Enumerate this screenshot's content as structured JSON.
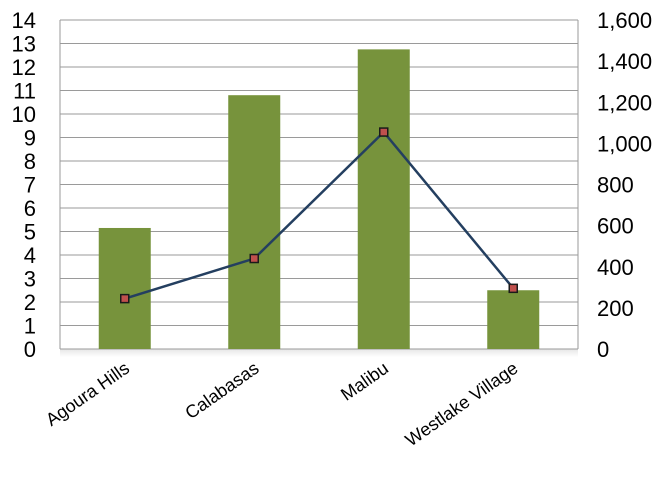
{
  "chart_data": {
    "type": "bar",
    "title": "",
    "xlabel": "",
    "ylabel": "",
    "categories": [
      "Agoura Hills",
      "Calabasas",
      "Malibu",
      "Westlake Village"
    ],
    "series": [
      {
        "type": "bar",
        "axis": "left",
        "values": [
          5.15,
          10.8,
          12.75,
          2.5
        ],
        "color": "#77933c"
      },
      {
        "type": "line",
        "axis": "right",
        "values": [
          245,
          440,
          1055,
          295
        ],
        "color": "#243f60",
        "marker_color": "#c0504d"
      }
    ],
    "ylim_left": [
      0,
      14
    ],
    "yticks_left": [
      "0",
      "1",
      "2",
      "3",
      "4",
      "5",
      "6",
      "7",
      "8",
      "9",
      "10",
      "11",
      "12",
      "13",
      "14"
    ],
    "ylim_right": [
      0,
      1600
    ],
    "yticks_right": [
      "0",
      "200",
      "400",
      "600",
      "800",
      "1,000",
      "1,200",
      "1,400",
      "1,600"
    ],
    "grid": true,
    "legend": "none"
  }
}
